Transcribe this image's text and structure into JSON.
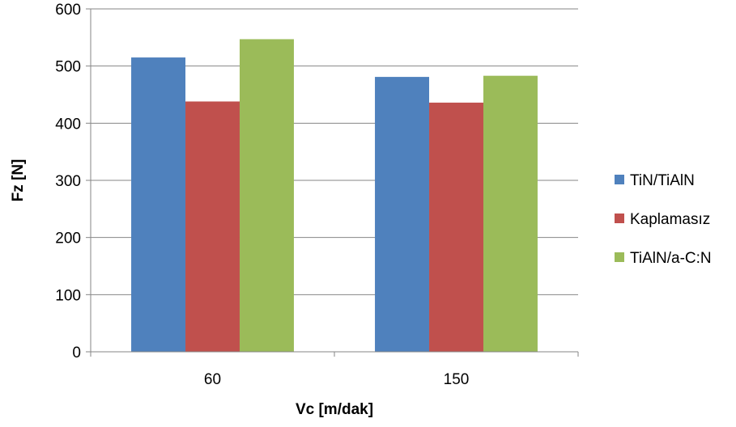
{
  "chart_data": {
    "type": "bar",
    "categories": [
      "60",
      "150"
    ],
    "series": [
      {
        "name": "TiN/TiAlN",
        "values": [
          515,
          481
        ],
        "color": "#4F81BD"
      },
      {
        "name": "Kaplamasız",
        "values": [
          438,
          436
        ],
        "color": "#C0504D"
      },
      {
        "name": "TiAlN/a-C:N",
        "values": [
          547,
          483
        ],
        "color": "#9BBB59"
      }
    ],
    "title": "",
    "xlabel": "Vc [m/dak]",
    "ylabel": "Fz [N]",
    "ylim": [
      0,
      600
    ],
    "yticks": [
      "0",
      "100",
      "200",
      "300",
      "400",
      "500",
      "600"
    ],
    "grid": "horizontal",
    "legend": "right"
  }
}
